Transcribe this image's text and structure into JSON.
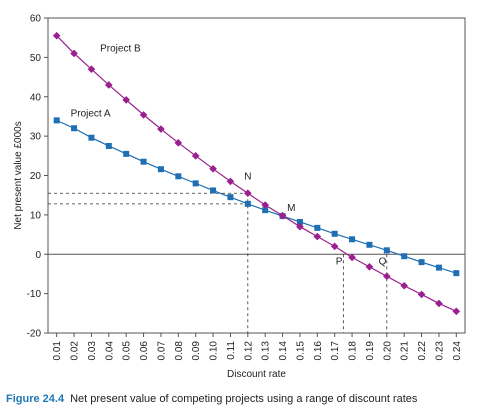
{
  "chart_data": {
    "type": "line",
    "xlabel": "Discount rate",
    "ylabel": "Net present value £000s",
    "xlim": [
      0.005,
      0.245
    ],
    "ylim": [
      -20,
      60
    ],
    "yticks": [
      -20,
      -10,
      0,
      10,
      20,
      30,
      40,
      50,
      60
    ],
    "x": [
      0.01,
      0.02,
      0.03,
      0.04,
      0.05,
      0.06,
      0.07,
      0.08,
      0.09,
      0.1,
      0.11,
      0.12,
      0.13,
      0.14,
      0.15,
      0.16,
      0.17,
      0.18,
      0.19,
      0.2,
      0.21,
      0.22,
      0.23,
      0.24
    ],
    "x_tick_labels": [
      "0.01",
      "0.02",
      "0.03",
      "0.04",
      "0.05",
      "0.06",
      "0.07",
      "0.08",
      "0.09",
      "0.10",
      "0.11",
      "0.12",
      "0.13",
      "0.14",
      "0.15",
      "0.16",
      "0.17",
      "0.18",
      "0.19",
      "0.20",
      "0.21",
      "0.22",
      "0.23",
      "0.24"
    ],
    "series": [
      {
        "name": "Project A",
        "color": "#1f6fb2",
        "marker": "square",
        "values": [
          34,
          32,
          29.6,
          27.5,
          25.5,
          23.5,
          21.6,
          19.8,
          18,
          16.2,
          14.5,
          12.8,
          11.2,
          9.7,
          8.2,
          6.7,
          5.2,
          3.8,
          2.4,
          1,
          -0.5,
          -2,
          -3.4,
          -4.8
        ]
      },
      {
        "name": "Project B",
        "color": "#9c1f8f",
        "marker": "diamond",
        "values": [
          55.5,
          51,
          47,
          43,
          39.2,
          35.4,
          31.8,
          28.3,
          25,
          21.7,
          18.5,
          15.5,
          12.5,
          9.8,
          7,
          4.5,
          2,
          -0.8,
          -3.2,
          -5.6,
          -8,
          -10.2,
          -12.5,
          -14.5
        ]
      }
    ],
    "series_labels": [
      {
        "text": "Project B",
        "x": 0.035,
        "y": 51.5
      },
      {
        "text": "Project A",
        "x": 0.018,
        "y": 35
      }
    ],
    "annotations": [
      {
        "text": "N",
        "x": 0.12,
        "y": 19
      },
      {
        "text": "M",
        "x": 0.145,
        "y": 11
      },
      {
        "text": "P",
        "x": 0.1725,
        "y": -2.6
      },
      {
        "text": "Q",
        "x": 0.1975,
        "y": -2.6
      }
    ],
    "guides": {
      "horizontal": [
        15.5,
        12.8
      ],
      "horizontal_to_x": 0.12,
      "vertical": [
        0.12,
        0.175,
        0.2
      ]
    }
  },
  "caption": {
    "figure_number": "Figure 24.4",
    "text": "Net present value of competing projects using a range of discount rates"
  }
}
